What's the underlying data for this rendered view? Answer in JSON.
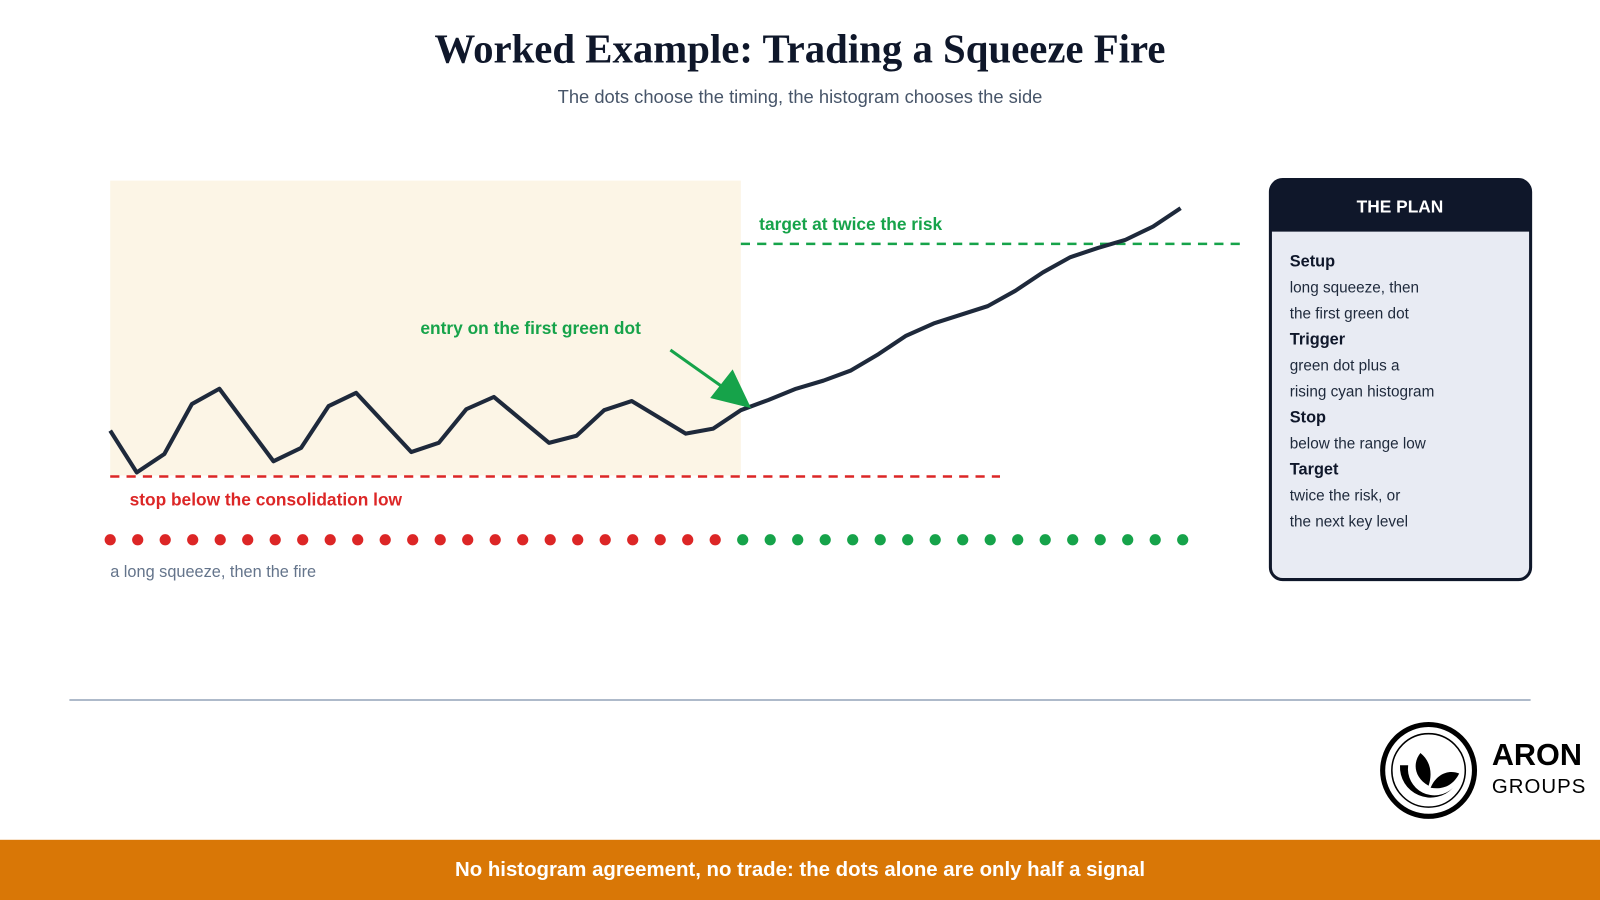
{
  "header": {
    "title": "Worked Example: Trading a Squeeze Fire",
    "subtitle": "The dots choose the timing, the histogram chooses the side"
  },
  "annotations": {
    "target": "target at twice the risk",
    "entry": "entry on the first green dot",
    "stop": "stop below the consolidation low",
    "caption": "a long squeeze, then the fire"
  },
  "plan": {
    "title": "THE PLAN",
    "sections": [
      {
        "heading": "Setup",
        "lines": [
          "long squeeze, then",
          "the first green dot"
        ]
      },
      {
        "heading": "Trigger",
        "lines": [
          "green dot plus a",
          "rising cyan histogram"
        ]
      },
      {
        "heading": "Stop",
        "lines": [
          "below the range low"
        ]
      },
      {
        "heading": "Target",
        "lines": [
          "twice the risk, or",
          "the next key level"
        ]
      }
    ]
  },
  "logo": {
    "name": "ARON",
    "sub": "GROUPS"
  },
  "footer": {
    "text": "No histogram agreement, no trade: the dots alone are only half a signal"
  }
}
